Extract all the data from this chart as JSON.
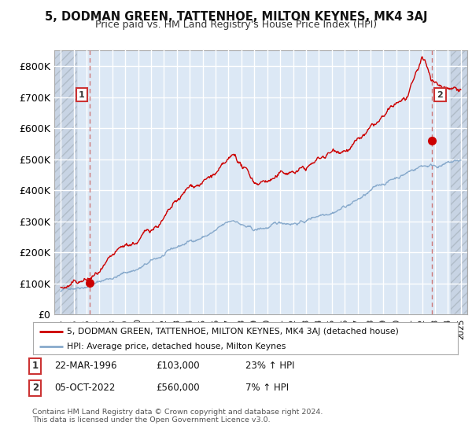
{
  "title": "5, DODMAN GREEN, TATTENHOE, MILTON KEYNES, MK4 3AJ",
  "subtitle": "Price paid vs. HM Land Registry's House Price Index (HPI)",
  "ylim": [
    0,
    850000
  ],
  "yticks": [
    0,
    100000,
    200000,
    300000,
    400000,
    500000,
    600000,
    700000,
    800000
  ],
  "xlim_start": 1993.5,
  "xlim_end": 2025.5,
  "hatch_left_end": 1995.25,
  "hatch_right_start": 2024.25,
  "marker1_x": 1996.22,
  "marker1_y": 103000,
  "marker2_x": 2022.76,
  "marker2_y": 560000,
  "annotation1_label": "1",
  "annotation2_label": "2",
  "legend_line1": "5, DODMAN GREEN, TATTENHOE, MILTON KEYNES, MK4 3AJ (detached house)",
  "legend_line2": "HPI: Average price, detached house, Milton Keynes",
  "note1_label": "1",
  "note1_date": "22-MAR-1996",
  "note1_price": "£103,000",
  "note1_hpi": "23% ↑ HPI",
  "note2_label": "2",
  "note2_date": "05-OCT-2022",
  "note2_price": "£560,000",
  "note2_hpi": "7% ↑ HPI",
  "footer": "Contains HM Land Registry data © Crown copyright and database right 2024.\nThis data is licensed under the Open Government Licence v3.0.",
  "bg_color": "#dce8f5",
  "hatch_color": "#c8d4e4",
  "grid_color": "#ffffff",
  "line_color_red": "#cc0000",
  "line_color_blue": "#88aacc",
  "dashed_color": "#cc7777",
  "anno_box_color": "#cc3333"
}
